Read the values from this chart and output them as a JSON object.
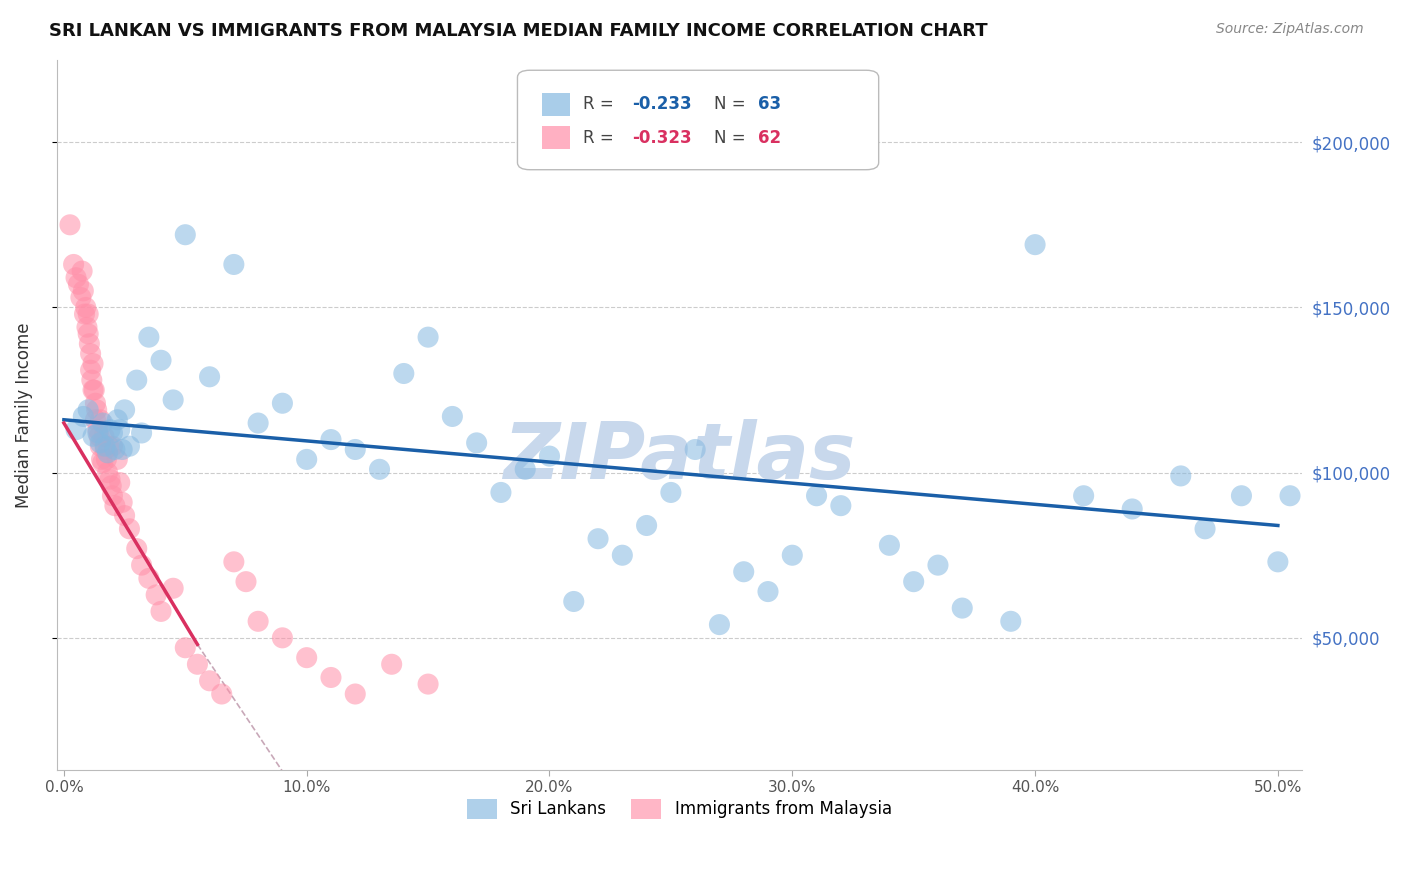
{
  "title": "SRI LANKAN VS IMMIGRANTS FROM MALAYSIA MEDIAN FAMILY INCOME CORRELATION CHART",
  "source": "Source: ZipAtlas.com",
  "xlim": [
    -0.3,
    51.0
  ],
  "ylim": [
    10000,
    225000
  ],
  "ylabel_ticks": [
    50000,
    100000,
    150000,
    200000
  ],
  "ylabel_labels": [
    "$50,000",
    "$100,000",
    "$150,000",
    "$200,000"
  ],
  "xlabel_vals": [
    0.0,
    10.0,
    20.0,
    30.0,
    40.0,
    50.0
  ],
  "blue_R": -0.233,
  "blue_N": 63,
  "pink_R": -0.323,
  "pink_N": 62,
  "blue_color": "#85b8e0",
  "pink_color": "#ff8fa8",
  "blue_line_color": "#1a5fa8",
  "pink_line_color": "#d93060",
  "watermark_color": "#c8d8ec",
  "legend_blue_label": "Sri Lankans",
  "legend_pink_label": "Immigrants from Malaysia",
  "ylabel": "Median Family Income",
  "blue_scatter_x": [
    0.5,
    0.8,
    1.0,
    1.2,
    1.4,
    1.5,
    1.6,
    1.7,
    1.8,
    1.9,
    2.0,
    2.1,
    2.2,
    2.3,
    2.4,
    2.5,
    2.7,
    3.0,
    3.2,
    3.5,
    4.0,
    4.5,
    5.0,
    6.0,
    7.0,
    8.0,
    9.0,
    10.0,
    11.0,
    12.0,
    13.0,
    14.0,
    15.0,
    16.0,
    17.0,
    18.0,
    19.0,
    20.0,
    21.0,
    22.0,
    23.0,
    24.0,
    25.0,
    26.0,
    27.0,
    28.0,
    29.0,
    30.0,
    31.0,
    32.0,
    34.0,
    35.0,
    36.0,
    37.0,
    39.0,
    40.0,
    42.0,
    44.0,
    46.0,
    47.0,
    48.5,
    50.0,
    50.5
  ],
  "blue_scatter_y": [
    113000,
    117000,
    119000,
    111000,
    112000,
    109000,
    115000,
    108000,
    106000,
    113000,
    112000,
    107000,
    116000,
    113000,
    107000,
    119000,
    108000,
    128000,
    112000,
    141000,
    134000,
    122000,
    172000,
    129000,
    163000,
    115000,
    121000,
    104000,
    110000,
    107000,
    101000,
    130000,
    141000,
    117000,
    109000,
    94000,
    101000,
    105000,
    61000,
    80000,
    75000,
    84000,
    94000,
    107000,
    54000,
    70000,
    64000,
    75000,
    93000,
    90000,
    78000,
    67000,
    72000,
    59000,
    55000,
    169000,
    93000,
    89000,
    99000,
    83000,
    93000,
    73000,
    93000
  ],
  "pink_scatter_x": [
    0.25,
    0.4,
    0.5,
    0.6,
    0.7,
    0.75,
    0.8,
    0.85,
    0.9,
    0.95,
    1.0,
    1.0,
    1.05,
    1.1,
    1.1,
    1.15,
    1.2,
    1.2,
    1.25,
    1.3,
    1.3,
    1.35,
    1.4,
    1.45,
    1.5,
    1.5,
    1.55,
    1.6,
    1.65,
    1.7,
    1.75,
    1.8,
    1.85,
    1.9,
    1.95,
    2.0,
    2.0,
    2.1,
    2.2,
    2.3,
    2.4,
    2.5,
    2.7,
    3.0,
    3.2,
    3.5,
    3.8,
    4.0,
    4.5,
    5.0,
    5.5,
    6.0,
    6.5,
    7.0,
    7.5,
    8.0,
    9.0,
    10.0,
    11.0,
    12.0,
    13.5,
    15.0
  ],
  "pink_scatter_y": [
    175000,
    163000,
    159000,
    157000,
    153000,
    161000,
    155000,
    148000,
    150000,
    144000,
    148000,
    142000,
    139000,
    136000,
    131000,
    128000,
    133000,
    125000,
    125000,
    121000,
    116000,
    119000,
    113000,
    111000,
    108000,
    116000,
    104000,
    103000,
    111000,
    107000,
    104000,
    100000,
    108000,
    98000,
    96000,
    108000,
    93000,
    90000,
    104000,
    97000,
    91000,
    87000,
    83000,
    77000,
    72000,
    68000,
    63000,
    58000,
    65000,
    47000,
    42000,
    37000,
    33000,
    73000,
    67000,
    55000,
    50000,
    44000,
    38000,
    33000,
    42000,
    36000
  ],
  "blue_line": [
    [
      0.0,
      50.0
    ],
    [
      116000,
      84000
    ]
  ],
  "pink_line_solid": [
    [
      0.0,
      5.5
    ],
    [
      115000,
      48000
    ]
  ],
  "pink_line_dashed": [
    [
      5.5,
      50.0
    ],
    [
      48000,
      -440000
    ]
  ]
}
